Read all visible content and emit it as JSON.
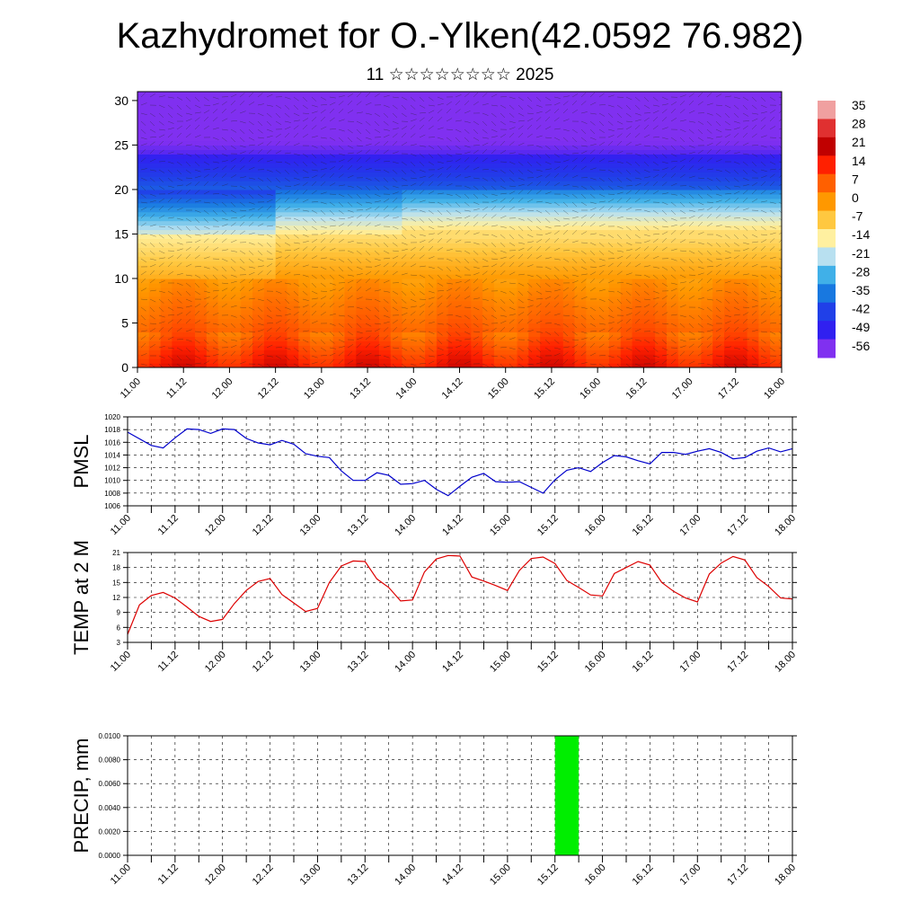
{
  "title": "Kazhydromet for O.-Ylken(42.0592 76.982)",
  "subtitle": "11 ☆☆☆☆☆☆☆☆ 2025",
  "time_ticks": [
    "11.00",
    "11.12",
    "12.00",
    "12.12",
    "13.00",
    "13.12",
    "14.00",
    "14.12",
    "15.00",
    "15.12",
    "16.00",
    "16.12",
    "17.00",
    "17.12",
    "18.00"
  ],
  "chart_data": [
    {
      "type": "heatmap",
      "name": "cross-section",
      "x_ticks": [
        "11.00",
        "11.12",
        "12.00",
        "12.12",
        "13.00",
        "13.12",
        "14.00",
        "14.12",
        "15.00",
        "15.12",
        "16.00",
        "16.12",
        "17.00",
        "17.12",
        "18.00"
      ],
      "y_ticks": [
        0,
        5,
        10,
        15,
        20,
        25,
        30
      ],
      "ylim": [
        0,
        31
      ],
      "colorbar": {
        "labels": [
          "35",
          "28",
          "21",
          "14",
          "7",
          "0",
          "-7",
          "-14",
          "-21",
          "-28",
          "-35",
          "-42",
          "-49",
          "-56"
        ],
        "colors": [
          "#f0a0a0",
          "#e03030",
          "#c00000",
          "#ff2000",
          "#ff6000",
          "#ff9800",
          "#ffc840",
          "#fff0a0",
          "#b8e0f0",
          "#40b0e8",
          "#1878e0",
          "#2040e8",
          "#3020f0",
          "#8030f0"
        ]
      },
      "field_description_layers": [
        {
          "from": 0,
          "to": 4,
          "value": 14
        },
        {
          "from": 4,
          "to": 9,
          "value": 5
        },
        {
          "from": 9,
          "to": 14,
          "value": -2
        },
        {
          "from": 14,
          "to": 16,
          "value": -12
        },
        {
          "from": 16,
          "to": 20,
          "value": -28
        },
        {
          "from": 20,
          "to": 24,
          "value": -40
        },
        {
          "from": 24,
          "to": 26,
          "value": -56
        },
        {
          "from": 26,
          "to": 31,
          "value": -60
        }
      ]
    },
    {
      "type": "line",
      "name": "PMSL",
      "ylabel": "PMSL",
      "ylim": [
        1006,
        1020
      ],
      "y_ticks": [
        1006,
        1008,
        1010,
        1012,
        1014,
        1016,
        1018,
        1020
      ],
      "x_ticks": [
        "11.00",
        "11.12",
        "12.00",
        "12.12",
        "13.00",
        "13.12",
        "14.00",
        "14.12",
        "15.00",
        "15.12",
        "16.00",
        "16.12",
        "17.00",
        "17.12",
        "18.00"
      ],
      "color": "#0000cc",
      "x_hours": [
        0,
        6,
        9,
        12,
        15,
        18,
        21,
        24,
        27,
        30,
        33,
        36,
        39,
        42,
        45,
        48,
        51,
        54,
        57,
        60,
        63,
        66,
        69,
        72,
        75,
        78,
        81,
        84,
        87,
        90,
        93,
        96,
        99,
        102,
        105,
        108,
        111,
        114,
        117,
        120,
        123,
        126,
        129,
        132,
        135,
        138,
        141,
        144,
        147,
        150,
        153,
        156,
        159,
        162,
        165,
        168
      ],
      "values": [
        1017.6,
        1015.5,
        1015.1,
        1016.7,
        1018.1,
        1018.0,
        1017.4,
        1018.1,
        1018.0,
        1016.6,
        1015.9,
        1015.6,
        1016.3,
        1015.7,
        1014.2,
        1013.8,
        1013.6,
        1011.5,
        1010.0,
        1010.0,
        1011.2,
        1010.8,
        1009.4,
        1009.5,
        1010.0,
        1008.6,
        1007.6,
        1009.1,
        1010.5,
        1011.1,
        1009.8,
        1009.7,
        1009.8,
        1008.9,
        1008.0,
        1010.1,
        1011.6,
        1012.0,
        1011.4,
        1012.8,
        1013.9,
        1013.7,
        1013.1,
        1012.6,
        1014.4,
        1014.4,
        1014.1,
        1014.6,
        1015.0,
        1014.4,
        1013.4,
        1013.6,
        1014.6,
        1015.1,
        1014.5,
        1015.0
      ]
    },
    {
      "type": "line",
      "name": "TEMP at 2 M",
      "ylabel": "TEMP at 2 M",
      "ylim": [
        3,
        21
      ],
      "y_ticks": [
        3,
        6,
        9,
        12,
        15,
        18,
        21
      ],
      "x_ticks": [
        "11.00",
        "11.12",
        "12.00",
        "12.12",
        "13.00",
        "13.12",
        "14.00",
        "14.12",
        "15.00",
        "15.12",
        "16.00",
        "16.12",
        "17.00",
        "17.12",
        "18.00"
      ],
      "color": "#dd0000",
      "x_hours": [
        0,
        3,
        6,
        9,
        12,
        15,
        18,
        21,
        24,
        27,
        30,
        33,
        36,
        39,
        42,
        45,
        48,
        51,
        54,
        57,
        60,
        63,
        66,
        69,
        72,
        75,
        78,
        81,
        84,
        87,
        90,
        93,
        96,
        99,
        102,
        105,
        108,
        111,
        114,
        117,
        120,
        123,
        126,
        129,
        132,
        135,
        138,
        141,
        144,
        147,
        150,
        153,
        156,
        159,
        162,
        165,
        168
      ],
      "values": [
        4.6,
        10.5,
        12.4,
        13.0,
        11.9,
        10.1,
        8.2,
        7.2,
        7.6,
        10.8,
        13.4,
        15.2,
        15.8,
        12.6,
        10.9,
        9.2,
        9.8,
        15.0,
        18.3,
        19.3,
        19.2,
        15.7,
        14.0,
        11.3,
        11.5,
        17.1,
        19.7,
        20.4,
        20.3,
        16.1,
        15.3,
        14.4,
        13.4,
        17.4,
        19.8,
        20.1,
        18.8,
        15.4,
        14.0,
        12.5,
        12.3,
        16.8,
        18.0,
        19.2,
        18.5,
        15.0,
        13.2,
        11.9,
        11.1,
        16.7,
        18.9,
        20.2,
        19.5,
        16.0,
        14.2,
        11.9,
        11.7
      ]
    },
    {
      "type": "bar",
      "name": "PRECIP, mm",
      "ylabel": "PRECIP, mm",
      "ylim": [
        0,
        0.01
      ],
      "y_ticks": [
        "0.0000",
        "0.0020",
        "0.0040",
        "0.0060",
        "0.0080",
        "0.0100"
      ],
      "x_ticks": [
        "11.00",
        "11.12",
        "12.00",
        "12.12",
        "13.00",
        "13.12",
        "14.00",
        "14.12",
        "15.00",
        "15.12",
        "16.00",
        "16.12",
        "17.00",
        "17.12",
        "18.00"
      ],
      "color": "#00ee00",
      "bars": [
        {
          "x_start_hour": 108,
          "x_end_hour": 114,
          "value": 0.01
        }
      ]
    }
  ]
}
